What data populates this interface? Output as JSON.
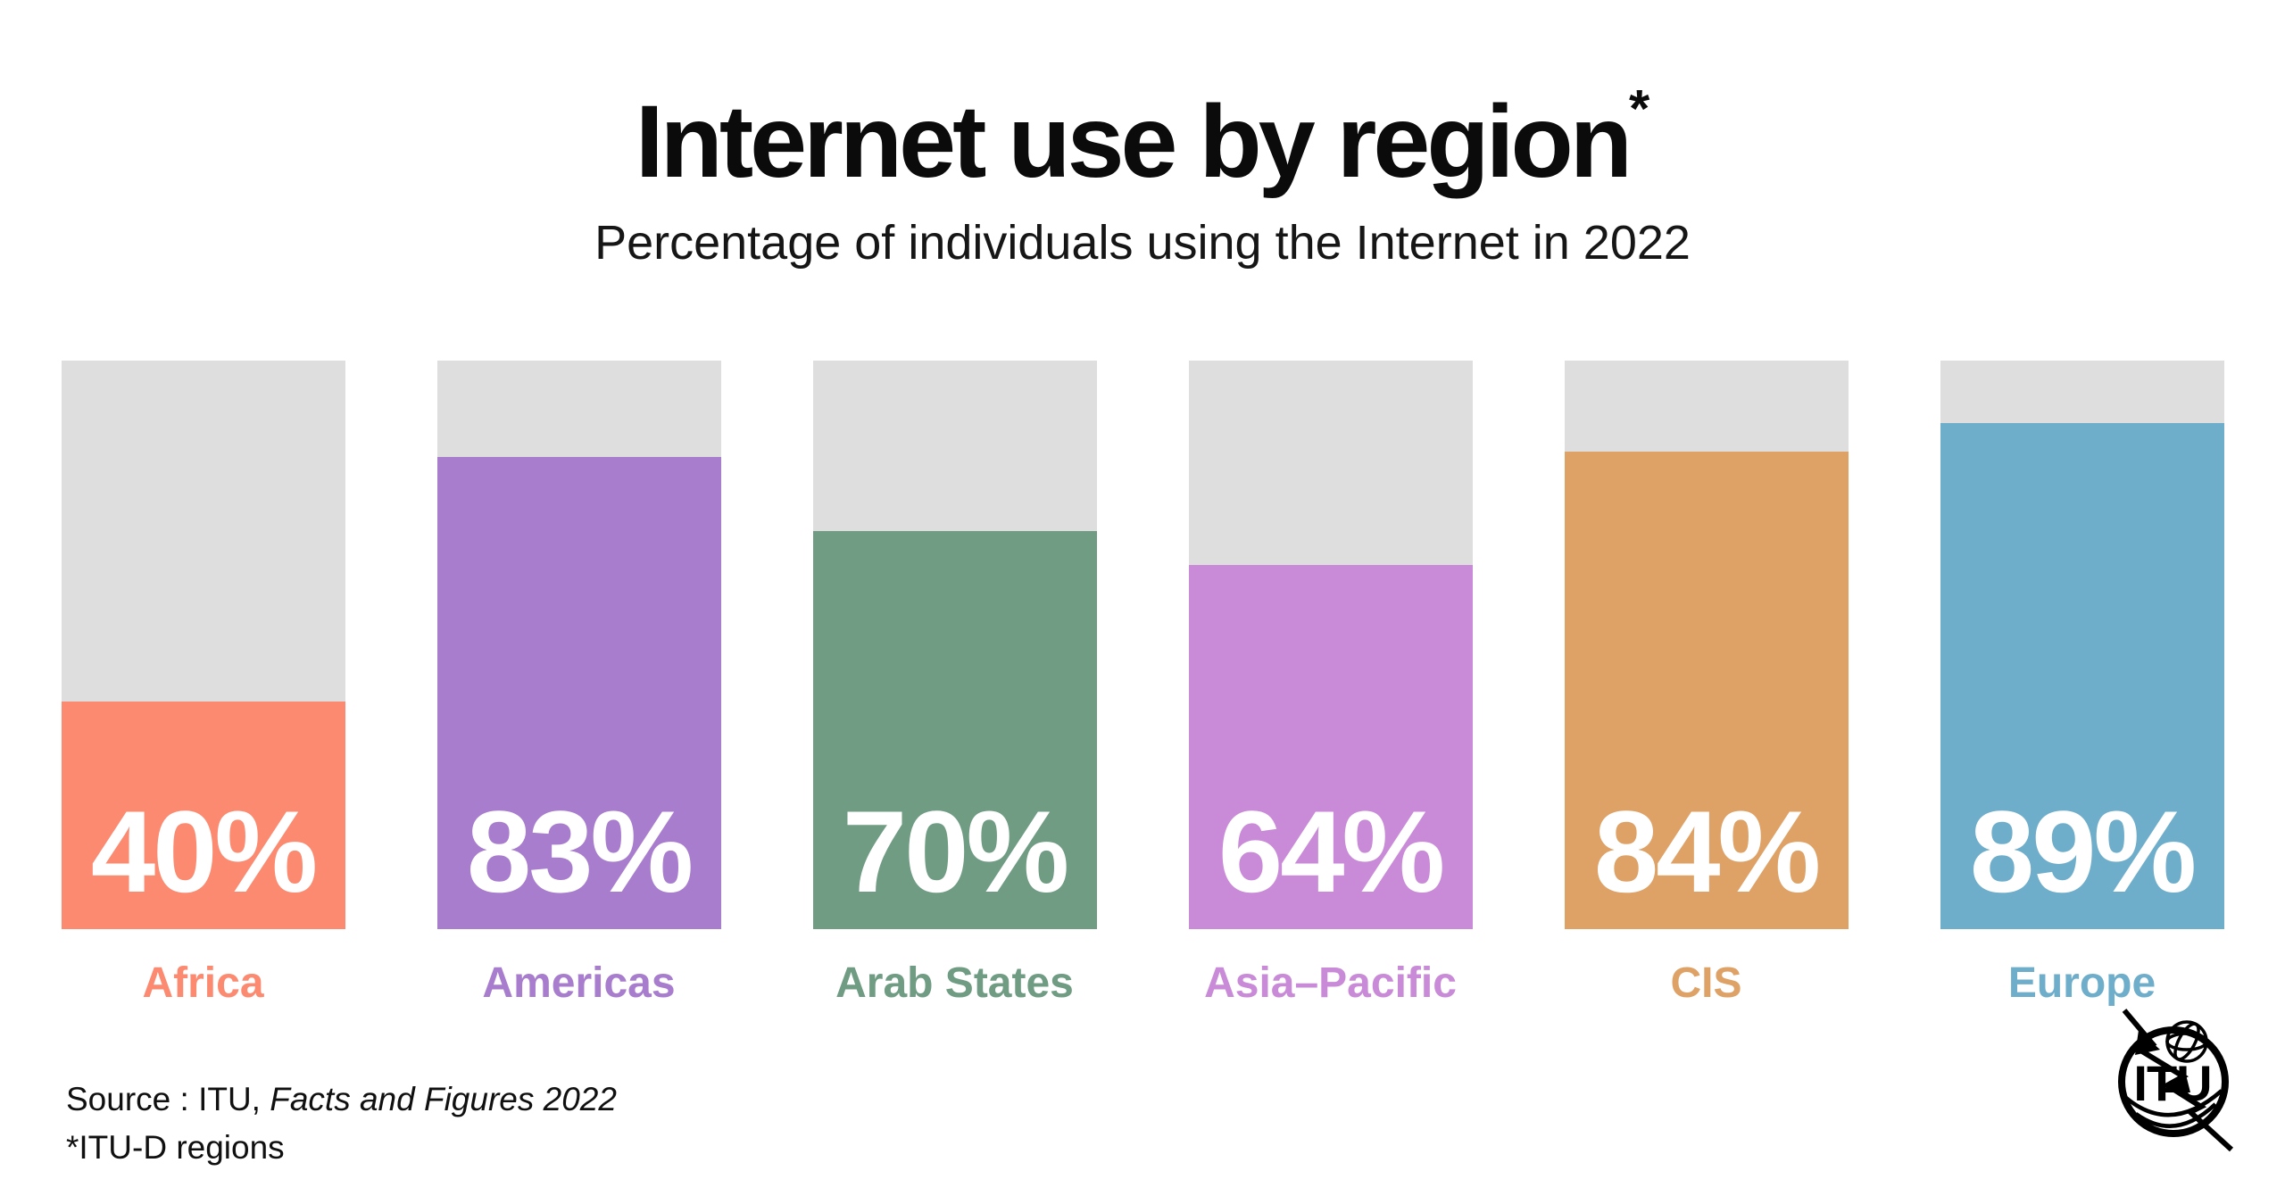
{
  "header": {
    "title": "Internet use by region",
    "title_mark": "*",
    "subtitle": "Percentage of individuals using the Internet in 2022"
  },
  "chart_data": {
    "type": "bar",
    "title": "Internet use by region*",
    "subtitle": "Percentage of individuals using the Internet in 2022",
    "unit": "percent of individuals",
    "year": "2022",
    "ylim": [
      0,
      100
    ],
    "grid": false,
    "legend": false,
    "categories": [
      "Africa",
      "Americas",
      "Arab States",
      "Asia–Pacific",
      "CIS",
      "Europe"
    ],
    "values": [
      40,
      83,
      70,
      64,
      84,
      89
    ],
    "value_labels": [
      "40%",
      "83%",
      "70%",
      "64%",
      "84%",
      "89%"
    ],
    "colors": [
      "#FB8A70",
      "#A87DCE",
      "#6F9C82",
      "#C98AD8",
      "#DEA166",
      "#6FAECB"
    ],
    "track_color": "#DEDEDE",
    "value_label_color": "#FFFFFF"
  },
  "footer": {
    "source_label": "Source : ITU,",
    "source_work": "Facts and Figures 2022",
    "footnote": "*ITU-D regions"
  },
  "logo": {
    "text": "ITU"
  }
}
